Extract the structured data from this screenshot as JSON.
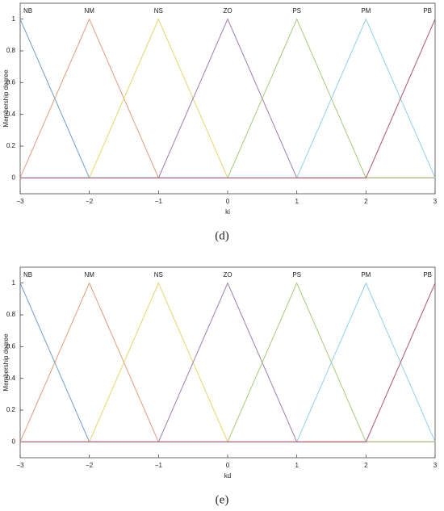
{
  "chart_data": [
    {
      "type": "line",
      "caption": "(d)",
      "xlabel": "ki",
      "ylabel": "Membership degree",
      "x": [
        -3,
        -2,
        -1,
        0,
        1,
        2,
        3
      ],
      "series": [
        {
          "name": "NB",
          "color": "#6f9fd0",
          "values": [
            1,
            0,
            0,
            0,
            0,
            0,
            0
          ]
        },
        {
          "name": "NM",
          "color": "#e29c7c",
          "values": [
            0,
            1,
            0,
            0,
            0,
            0,
            0
          ]
        },
        {
          "name": "NS",
          "color": "#e6d56a",
          "values": [
            0,
            0,
            1,
            0,
            0,
            0,
            0
          ]
        },
        {
          "name": "ZO",
          "color": "#9f7fb0",
          "values": [
            0,
            0,
            0,
            1,
            0,
            0,
            0
          ]
        },
        {
          "name": "PS",
          "color": "#a9c97a",
          "values": [
            0,
            0,
            0,
            0,
            1,
            0,
            0
          ]
        },
        {
          "name": "PM",
          "color": "#8fd0e8",
          "values": [
            0,
            0,
            0,
            0,
            0,
            1,
            0
          ]
        },
        {
          "name": "PB",
          "color": "#b0566a",
          "values": [
            0,
            0,
            0,
            0,
            0,
            0,
            1
          ]
        }
      ],
      "xlim": [
        -3,
        3
      ],
      "xticks": [
        {
          "value": -3,
          "label": "−3"
        },
        {
          "value": -2,
          "label": "−2"
        },
        {
          "value": -1,
          "label": "−1"
        },
        0,
        1,
        2,
        3
      ],
      "ylim": [
        -0.1,
        1.1
      ],
      "yticks": [
        0,
        0.2,
        0.4,
        0.6,
        0.8,
        1
      ]
    },
    {
      "type": "line",
      "caption": "(e)",
      "xlabel": "kd",
      "ylabel": "Membership degree",
      "x": [
        -3,
        -2,
        -1,
        0,
        1,
        2,
        3
      ],
      "series": [
        {
          "name": "NB",
          "color": "#6f9fd0",
          "values": [
            1,
            0,
            0,
            0,
            0,
            0,
            0
          ]
        },
        {
          "name": "NM",
          "color": "#e29c7c",
          "values": [
            0,
            1,
            0,
            0,
            0,
            0,
            0
          ]
        },
        {
          "name": "NS",
          "color": "#e6d56a",
          "values": [
            0,
            0,
            1,
            0,
            0,
            0,
            0
          ]
        },
        {
          "name": "ZO",
          "color": "#9f7fb0",
          "values": [
            0,
            0,
            0,
            1,
            0,
            0,
            0
          ]
        },
        {
          "name": "PS",
          "color": "#a9c97a",
          "values": [
            0,
            0,
            0,
            0,
            1,
            0,
            0
          ]
        },
        {
          "name": "PM",
          "color": "#8fd0e8",
          "values": [
            0,
            0,
            0,
            0,
            0,
            1,
            0
          ]
        },
        {
          "name": "PB",
          "color": "#b0566a",
          "values": [
            0,
            0,
            0,
            0,
            0,
            0,
            1
          ]
        }
      ],
      "xlim": [
        -3,
        3
      ],
      "xticks": [
        {
          "value": -3,
          "label": "−3"
        },
        {
          "value": -2,
          "label": "−2"
        },
        {
          "value": -1,
          "label": "−1"
        },
        0,
        1,
        2,
        3
      ],
      "ylim": [
        -0.1,
        1.1
      ],
      "yticks": [
        0,
        0.2,
        0.4,
        0.6,
        0.8,
        1
      ]
    }
  ]
}
